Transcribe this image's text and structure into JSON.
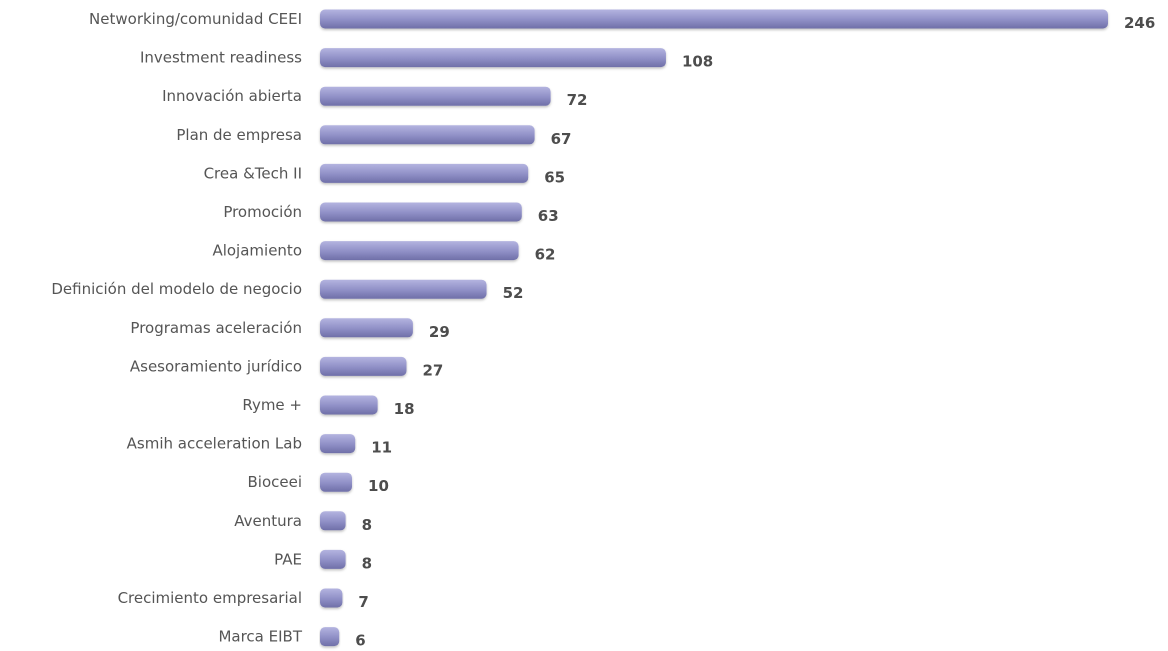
{
  "chart_data": {
    "type": "bar",
    "orientation": "horizontal",
    "categories": [
      "Networking/comunidad CEEI",
      "Investment readiness",
      "Innovación abierta",
      "Plan de empresa",
      "Crea &Tech II",
      "Promoción",
      "Alojamiento",
      "Definición del modelo de negocio",
      "Programas aceleración",
      "Asesoramiento jurídico",
      "Ryme +",
      "Asmih acceleration Lab",
      "Bioceei",
      "Aventura",
      "PAE",
      "Crecimiento empresarial",
      "Marca EIBT"
    ],
    "values": [
      246,
      108,
      72,
      67,
      65,
      63,
      62,
      52,
      29,
      27,
      18,
      11,
      10,
      8,
      8,
      7,
      6
    ],
    "title": "",
    "xlabel": "",
    "ylabel": "",
    "xlim": [
      0,
      246
    ],
    "grid": false,
    "legend": "none",
    "data_labels": true,
    "bar_color": "#8f8fc6",
    "bar_color_light": "#b4b4e0",
    "bar_color_dark": "#6f6fa8",
    "label_color": "#555555",
    "value_color": "#4d4d4d"
  }
}
